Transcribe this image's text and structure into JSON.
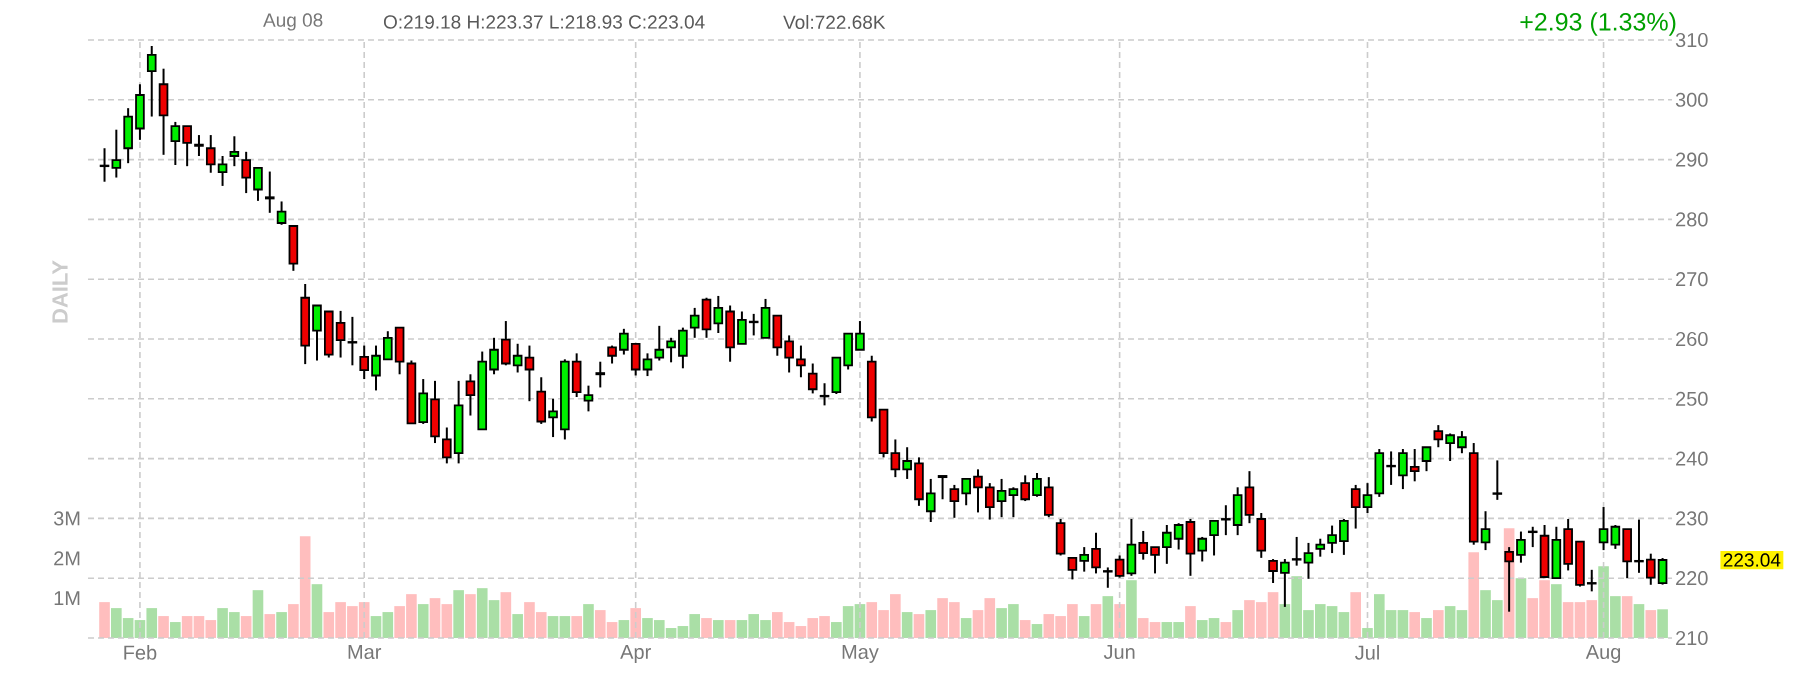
{
  "chart_data": {
    "type": "candlestick",
    "categories": [
      null,
      null,
      null,
      "Feb",
      null,
      null,
      null,
      null,
      null,
      null,
      null,
      null,
      null,
      null,
      null,
      null,
      null,
      null,
      null,
      null,
      null,
      null,
      "Mar",
      null,
      null,
      null,
      null,
      null,
      null,
      null,
      null,
      null,
      null,
      null,
      null,
      null,
      null,
      null,
      null,
      null,
      null,
      null,
      null,
      null,
      null,
      "Apr",
      null,
      null,
      null,
      null,
      null,
      null,
      null,
      null,
      null,
      null,
      null,
      null,
      null,
      null,
      null,
      null,
      null,
      null,
      "May",
      null,
      null,
      null,
      null,
      null,
      null,
      null,
      null,
      null,
      null,
      null,
      null,
      null,
      null,
      null,
      null,
      null,
      null,
      null,
      null,
      null,
      "Jun",
      null,
      null,
      null,
      null,
      null,
      null,
      null,
      null,
      null,
      null,
      null,
      null,
      null,
      null,
      null,
      null,
      null,
      null,
      null,
      null,
      "Jul",
      null,
      null,
      null,
      null,
      null,
      null,
      null,
      null,
      null,
      null,
      null,
      null,
      null,
      null,
      null,
      null,
      null,
      null,
      null,
      "Aug",
      null,
      null,
      null,
      null,
      null
    ],
    "ylim": [
      210,
      310
    ],
    "yticks": [
      210,
      220,
      230,
      240,
      250,
      260,
      270,
      280,
      290,
      300,
      310
    ],
    "y2lim": [
      0,
      15
    ],
    "y2ticks": [
      {
        "value": 1,
        "label": "1M"
      },
      {
        "value": 2,
        "label": "2M"
      },
      {
        "value": 3,
        "label": "3M"
      }
    ],
    "grid": true,
    "annotations": [
      "Aug 08",
      "O:219.18 H:223.37 L:218.93 C:223.04",
      "Vol:722.68K",
      "+2.93 (1.33%)",
      "DAILY",
      "223.04"
    ],
    "series": [
      {
        "type": "candlestick",
        "ohlc": [
          [
            289,
            291.9,
            286.3,
            288.9
          ],
          [
            288.6,
            295,
            287,
            289.9
          ],
          [
            291.9,
            298.6,
            289.4,
            297.2
          ],
          [
            295.2,
            302.6,
            293.3,
            300.8
          ],
          [
            304.8,
            309,
            297.2,
            307.5
          ],
          [
            302.6,
            305.2,
            290.8,
            297.4
          ],
          [
            293.1,
            296.3,
            289.1,
            295.6
          ],
          [
            295.6,
            295.6,
            288.9,
            292.8
          ],
          [
            292.5,
            294.1,
            290.6,
            292.3
          ],
          [
            291.9,
            294.1,
            287.8,
            289.2
          ],
          [
            287.9,
            290.6,
            285.6,
            289.2
          ],
          [
            290.6,
            293.9,
            288.9,
            291.3
          ],
          [
            289.9,
            291.3,
            284.4,
            287
          ],
          [
            285,
            288.6,
            283.1,
            288.6
          ],
          [
            283.7,
            288,
            281.1,
            283.5
          ],
          [
            279.4,
            283,
            279.1,
            281.3
          ],
          [
            278.9,
            278.9,
            271.4,
            272.6
          ],
          [
            266.9,
            269.2,
            255.8,
            258.9
          ],
          [
            261.4,
            265.6,
            256.4,
            265.6
          ],
          [
            264.6,
            264.6,
            256.9,
            257.4
          ],
          [
            262.7,
            264.7,
            256.9,
            259.8
          ],
          [
            259.5,
            263.7,
            255.6,
            259.4
          ],
          [
            257,
            258.9,
            253.3,
            254.8
          ],
          [
            253.9,
            258.9,
            251.4,
            257.2
          ],
          [
            256.6,
            261.3,
            256.6,
            260.2
          ],
          [
            261.9,
            261.9,
            254.1,
            256.2
          ],
          [
            255.9,
            256.4,
            245.9,
            245.9
          ],
          [
            246.1,
            253.3,
            245.8,
            250.9
          ],
          [
            249.9,
            253,
            242.6,
            243.7
          ],
          [
            243.2,
            245.2,
            239.2,
            240.2
          ],
          [
            240.9,
            253,
            239.2,
            248.9
          ],
          [
            252.9,
            254.1,
            247.2,
            250.6
          ],
          [
            244.9,
            257.9,
            244.9,
            256.2
          ],
          [
            254.9,
            260.2,
            254.1,
            258.2
          ],
          [
            259.9,
            263,
            255.6,
            255.9
          ],
          [
            255.6,
            259.2,
            254.4,
            257.2
          ],
          [
            256.9,
            258.9,
            249.6,
            254.9
          ],
          [
            251.2,
            253.6,
            245.8,
            246.2
          ],
          [
            246.9,
            250,
            243.6,
            247.9
          ],
          [
            244.9,
            256.6,
            243.2,
            256.2
          ],
          [
            256.2,
            257.6,
            250.3,
            251.1
          ],
          [
            249.7,
            252.2,
            247.9,
            250.6
          ],
          [
            254.3,
            256.2,
            251.9,
            254.1
          ],
          [
            258.6,
            258.9,
            255.9,
            257.2
          ],
          [
            258.2,
            261.7,
            257.4,
            260.9
          ],
          [
            259.2,
            259.2,
            253.9,
            254.9
          ],
          [
            254.9,
            257.6,
            253.8,
            256.6
          ],
          [
            256.9,
            262.2,
            256.4,
            258.2
          ],
          [
            258.6,
            260.2,
            256.1,
            259.6
          ],
          [
            257.2,
            261.9,
            255.1,
            261.4
          ],
          [
            261.9,
            265.2,
            260.2,
            263.9
          ],
          [
            266.6,
            266.9,
            260.2,
            261.6
          ],
          [
            262.6,
            267.2,
            261,
            265.2
          ],
          [
            264.6,
            265.6,
            256.2,
            258.6
          ],
          [
            259.2,
            264.6,
            259.2,
            263.2
          ],
          [
            262.8,
            264.2,
            260.6,
            262.9
          ],
          [
            260.2,
            266.7,
            260.2,
            265.2
          ],
          [
            263.9,
            263.9,
            257.2,
            258.6
          ],
          [
            259.6,
            260.6,
            254.4,
            256.9
          ],
          [
            256.6,
            258.9,
            253.6,
            255.6
          ],
          [
            254.2,
            255.9,
            250.9,
            251.6
          ],
          [
            250.5,
            252.6,
            248.9,
            250.4
          ],
          [
            251.1,
            256.9,
            250.8,
            256.9
          ],
          [
            255.6,
            260.9,
            254.9,
            260.9
          ],
          [
            258.2,
            263,
            258.2,
            260.9
          ],
          [
            256.2,
            257.2,
            246.2,
            246.9
          ],
          [
            248.2,
            248.2,
            240.2,
            240.9
          ],
          [
            240.9,
            243.2,
            236.9,
            238.2
          ],
          [
            238.2,
            241.9,
            236.6,
            239.6
          ],
          [
            239.2,
            240.2,
            232.1,
            233.2
          ],
          [
            231.2,
            236.6,
            229.4,
            234.2
          ],
          [
            237.1,
            237.1,
            233.2,
            236.9
          ],
          [
            234.9,
            235.6,
            230.1,
            232.9
          ],
          [
            234.2,
            236.6,
            232.2,
            236.6
          ],
          [
            237,
            238.2,
            231,
            235.2
          ],
          [
            235.2,
            235.9,
            229.8,
            231.9
          ],
          [
            232.9,
            236.6,
            230.2,
            234.6
          ],
          [
            233.9,
            235.2,
            230.2,
            234.9
          ],
          [
            235.9,
            237.2,
            232.9,
            233.2
          ],
          [
            233.9,
            237.6,
            233.6,
            236.6
          ],
          [
            235.2,
            236.9,
            230.2,
            230.6
          ],
          [
            229.2,
            229.9,
            223.8,
            224.1
          ],
          [
            223.4,
            223.4,
            219.8,
            221.4
          ],
          [
            222.9,
            225.2,
            221.1,
            223.9
          ],
          [
            224.9,
            227.6,
            220.8,
            221.8
          ],
          [
            221.1,
            221.8,
            218.4,
            221.2
          ],
          [
            223.1,
            223.8,
            220.1,
            220.4
          ],
          [
            220.8,
            229.9,
            220.4,
            225.6
          ],
          [
            225.9,
            227.9,
            223.1,
            224.2
          ],
          [
            225.2,
            225.2,
            220.8,
            223.9
          ],
          [
            225.2,
            228.9,
            222.4,
            227.6
          ],
          [
            226.6,
            229.2,
            224.8,
            228.9
          ],
          [
            229.4,
            229.9,
            220.4,
            224.1
          ],
          [
            224.6,
            226.9,
            222.8,
            226.6
          ],
          [
            227.2,
            229.6,
            223.8,
            229.6
          ],
          [
            229.9,
            232.2,
            227.2,
            229.8
          ],
          [
            228.9,
            235.2,
            227.2,
            233.9
          ],
          [
            235.2,
            237.9,
            229.2,
            230.6
          ],
          [
            229.9,
            230.9,
            223.4,
            224.6
          ],
          [
            222.9,
            223.2,
            219.2,
            221.2
          ],
          [
            220.9,
            223.2,
            215.2,
            222.6
          ],
          [
            223.1,
            226.9,
            222.1,
            223.2
          ],
          [
            222.6,
            225.9,
            219.9,
            224.2
          ],
          [
            224.9,
            226.6,
            223.6,
            225.6
          ],
          [
            225.9,
            228.8,
            224.2,
            227.2
          ],
          [
            226.2,
            229.9,
            223.9,
            229.6
          ],
          [
            234.9,
            235.6,
            228.3,
            231.9
          ],
          [
            231.9,
            235.9,
            230.9,
            233.9
          ],
          [
            234.2,
            241.6,
            233.6,
            240.9
          ],
          [
            238.7,
            241.2,
            235.6,
            238.8
          ],
          [
            237.2,
            241.6,
            234.9,
            240.9
          ],
          [
            238.6,
            241.6,
            236.2,
            237.9
          ],
          [
            239.6,
            241.9,
            237.9,
            241.9
          ],
          [
            244.6,
            245.6,
            241.9,
            243.2
          ],
          [
            242.6,
            244.2,
            239.6,
            243.9
          ],
          [
            241.9,
            244.6,
            240.9,
            243.6
          ],
          [
            240.9,
            242.6,
            225.6,
            226.1
          ],
          [
            226,
            231.2,
            224.7,
            228.2
          ],
          [
            234.1,
            239.7,
            233.1,
            234.2
          ],
          [
            224.4,
            225.2,
            214.4,
            222.8
          ],
          [
            223.9,
            227.8,
            222.6,
            226.4
          ],
          [
            227.8,
            228.6,
            225.2,
            227.7
          ],
          [
            227.1,
            228.9,
            220,
            220.2
          ],
          [
            220,
            228.6,
            220,
            226.4
          ],
          [
            228.2,
            229.9,
            221.3,
            222.4
          ],
          [
            226.1,
            226.1,
            218.6,
            218.9
          ],
          [
            219.2,
            221.4,
            217.8,
            219.1
          ],
          [
            226,
            231.9,
            224.7,
            228.2
          ],
          [
            225.6,
            228.9,
            224.9,
            228.6
          ],
          [
            228.2,
            228.2,
            220,
            222.8
          ],
          [
            222.8,
            229.8,
            220.9,
            222.9
          ],
          [
            223.1,
            224.1,
            218.9,
            220.11
          ],
          [
            219.18,
            223.37,
            218.93,
            223.04
          ]
        ],
        "colors": [
          "#ee0000",
          "#00ee00",
          "#00ee00",
          "#00ee00",
          "#00ee00",
          "#ee0000",
          "#00ee00",
          "#ee0000",
          "#ee0000",
          "#ee0000",
          "#00ee00",
          "#00ee00",
          "#ee0000",
          "#00ee00",
          "#ee0000",
          "#00ee00",
          "#ee0000",
          "#ee0000",
          "#00ee00",
          "#ee0000",
          "#ee0000",
          "#ee0000",
          "#ee0000",
          "#00ee00",
          "#00ee00",
          "#ee0000",
          "#ee0000",
          "#00ee00",
          "#ee0000",
          "#ee0000",
          "#00ee00",
          "#ee0000",
          "#00ee00",
          "#00ee00",
          "#ee0000",
          "#00ee00",
          "#ee0000",
          "#ee0000",
          "#00ee00",
          "#00ee00",
          "#ee0000",
          "#00ee00",
          "#ee0000",
          "#ee0000",
          "#00ee00",
          "#ee0000",
          "#00ee00",
          "#00ee00",
          "#00ee00",
          "#00ee00",
          "#00ee00",
          "#ee0000",
          "#00ee00",
          "#ee0000",
          "#00ee00",
          "#00ee00",
          "#00ee00",
          "#ee0000",
          "#ee0000",
          "#ee0000",
          "#ee0000",
          "#ee0000",
          "#00ee00",
          "#00ee00",
          "#00ee00",
          "#ee0000",
          "#ee0000",
          "#ee0000",
          "#00ee00",
          "#ee0000",
          "#00ee00",
          "#ee0000",
          "#ee0000",
          "#00ee00",
          "#ee0000",
          "#ee0000",
          "#00ee00",
          "#00ee00",
          "#ee0000",
          "#00ee00",
          "#ee0000",
          "#ee0000",
          "#ee0000",
          "#00ee00",
          "#ee0000",
          "#00ee00",
          "#ee0000",
          "#00ee00",
          "#ee0000",
          "#ee0000",
          "#00ee00",
          "#00ee00",
          "#ee0000",
          "#00ee00",
          "#00ee00",
          "#ee0000",
          "#00ee00",
          "#ee0000",
          "#ee0000",
          "#ee0000",
          "#00ee00",
          "#00ee00",
          "#00ee00",
          "#00ee00",
          "#00ee00",
          "#00ee00",
          "#ee0000",
          "#00ee00",
          "#00ee00",
          "#00ee00",
          "#00ee00",
          "#ee0000",
          "#00ee00",
          "#ee0000",
          "#00ee00",
          "#00ee00",
          "#ee0000",
          "#00ee00",
          "#00ee00",
          "#ee0000",
          "#00ee00",
          "#ee0000",
          "#ee0000",
          "#00ee00",
          "#ee0000",
          "#ee0000",
          "#ee0000",
          "#00ee00",
          "#00ee00",
          "#ee0000",
          "#00ee00",
          "#ee0000",
          "#00ee00"
        ]
      },
      {
        "type": "bar",
        "axis": "y2",
        "values": [
          0.9,
          0.75,
          0.5,
          0.45,
          0.75,
          0.55,
          0.4,
          0.55,
          0.55,
          0.45,
          0.75,
          0.65,
          0.55,
          1.2,
          0.6,
          0.65,
          0.85,
          2.55,
          1.35,
          0.65,
          0.9,
          0.8,
          0.9,
          0.55,
          0.65,
          0.8,
          1.1,
          0.85,
          1.0,
          0.85,
          1.2,
          1.1,
          1.25,
          0.95,
          1.15,
          0.6,
          0.9,
          0.65,
          0.55,
          0.55,
          0.55,
          0.85,
          0.7,
          0.4,
          0.45,
          0.75,
          0.5,
          0.45,
          0.25,
          0.3,
          0.6,
          0.5,
          0.45,
          0.45,
          0.45,
          0.6,
          0.45,
          0.65,
          0.4,
          0.3,
          0.5,
          0.55,
          0.4,
          0.8,
          0.85,
          0.9,
          0.7,
          1.1,
          0.65,
          0.6,
          0.7,
          1.0,
          0.9,
          0.5,
          0.7,
          1.0,
          0.75,
          0.85,
          0.45,
          0.35,
          0.6,
          0.55,
          0.85,
          0.55,
          0.85,
          1.05,
          0.85,
          1.45,
          0.5,
          0.4,
          0.4,
          0.4,
          0.8,
          0.45,
          0.5,
          0.4,
          0.7,
          0.95,
          0.9,
          1.15,
          0.85,
          1.55,
          0.7,
          0.85,
          0.8,
          0.65,
          1.15,
          0.25,
          1.1,
          0.7,
          0.7,
          0.65,
          0.5,
          0.7,
          0.8,
          0.7,
          2.15,
          1.2,
          0.95,
          2.75,
          1.5,
          1.0,
          1.45,
          1.35,
          0.9,
          0.9,
          0.95,
          1.8,
          1.05,
          1.05,
          0.85,
          0.7,
          0.72
        ],
        "colors": [
          "#ffbebe",
          "#aadfa6",
          "#aadfa6",
          "#aadfa6",
          "#aadfa6",
          "#ffbebe",
          "#aadfa6",
          "#ffbebe",
          "#ffbebe",
          "#ffbebe",
          "#aadfa6",
          "#aadfa6",
          "#ffbebe",
          "#aadfa6",
          "#ffbebe",
          "#aadfa6",
          "#ffbebe",
          "#ffbebe",
          "#aadfa6",
          "#ffbebe",
          "#ffbebe",
          "#ffbebe",
          "#ffbebe",
          "#aadfa6",
          "#aadfa6",
          "#ffbebe",
          "#ffbebe",
          "#aadfa6",
          "#ffbebe",
          "#ffbebe",
          "#aadfa6",
          "#ffbebe",
          "#aadfa6",
          "#aadfa6",
          "#ffbebe",
          "#aadfa6",
          "#ffbebe",
          "#ffbebe",
          "#aadfa6",
          "#aadfa6",
          "#ffbebe",
          "#aadfa6",
          "#ffbebe",
          "#ffbebe",
          "#aadfa6",
          "#ffbebe",
          "#aadfa6",
          "#aadfa6",
          "#aadfa6",
          "#aadfa6",
          "#aadfa6",
          "#ffbebe",
          "#aadfa6",
          "#ffbebe",
          "#aadfa6",
          "#aadfa6",
          "#aadfa6",
          "#ffbebe",
          "#ffbebe",
          "#ffbebe",
          "#ffbebe",
          "#ffbebe",
          "#aadfa6",
          "#aadfa6",
          "#aadfa6",
          "#ffbebe",
          "#ffbebe",
          "#ffbebe",
          "#aadfa6",
          "#ffbebe",
          "#aadfa6",
          "#ffbebe",
          "#ffbebe",
          "#aadfa6",
          "#ffbebe",
          "#ffbebe",
          "#aadfa6",
          "#aadfa6",
          "#ffbebe",
          "#aadfa6",
          "#ffbebe",
          "#ffbebe",
          "#ffbebe",
          "#aadfa6",
          "#ffbebe",
          "#aadfa6",
          "#ffbebe",
          "#aadfa6",
          "#ffbebe",
          "#ffbebe",
          "#aadfa6",
          "#aadfa6",
          "#ffbebe",
          "#aadfa6",
          "#aadfa6",
          "#ffbebe",
          "#aadfa6",
          "#ffbebe",
          "#ffbebe",
          "#ffbebe",
          "#aadfa6",
          "#aadfa6",
          "#aadfa6",
          "#aadfa6",
          "#aadfa6",
          "#aadfa6",
          "#ffbebe",
          "#aadfa6",
          "#aadfa6",
          "#aadfa6",
          "#aadfa6",
          "#ffbebe",
          "#aadfa6",
          "#ffbebe",
          "#aadfa6",
          "#aadfa6",
          "#ffbebe",
          "#aadfa6",
          "#aadfa6",
          "#ffbebe",
          "#aadfa6",
          "#ffbebe",
          "#ffbebe",
          "#aadfa6",
          "#ffbebe",
          "#ffbebe",
          "#ffbebe",
          "#aadfa6",
          "#aadfa6",
          "#ffbebe",
          "#aadfa6",
          "#ffbebe",
          "#aadfa6"
        ]
      }
    ]
  }
}
